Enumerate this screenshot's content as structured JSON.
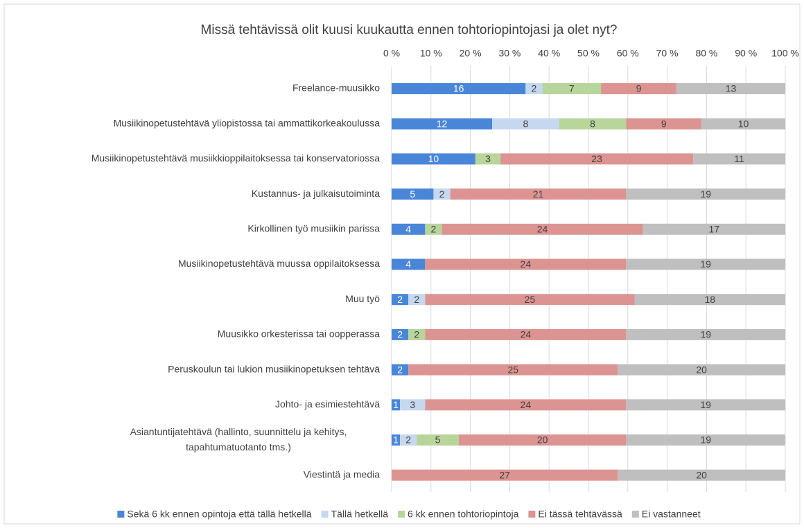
{
  "chart_data": {
    "type": "stacked-bar-horizontal",
    "title": "Missä tehtävissä olit kuusi kuukautta ennen tohtoriopintojasi ja olet nyt?",
    "categories": [
      "Freelance-muusikko",
      "Musiikinopetustehtävä yliopistossa tai ammattikorkeakoulussa",
      "Musiikinopetustehtävä musiikkioppilaitoksessa tai konservatoriossa",
      "Kustannus- ja julkaisutoiminta",
      "Kirkollinen työ musiikin parissa",
      "Musiikinopetustehtävä muussa oppilaitoksessa",
      "Muu työ",
      "Muusikko orkesterissa tai oopperassa",
      "Peruskoulun tai lukion musiikinopetuksen tehtävä",
      "Johto- ja esimiestehtävä",
      "Asiantuntijatehtävä (hallinto, suunnittelu ja kehitys, tapahtumatuotanto tms.)",
      "Viestintä ja media"
    ],
    "series": [
      {
        "name": "Sekä 6 kk ennen opintoja että tällä hetkellä",
        "color": "#4a86d8",
        "values": [
          34.04,
          25.53,
          21.28,
          10.64,
          8.51,
          8.51,
          4.26,
          4.26,
          4.26,
          2.13,
          2.13,
          null
        ],
        "value_labels": [
          "16",
          "12",
          "10",
          "5",
          "4",
          "4",
          "2",
          "2",
          "2",
          "1",
          "1",
          null
        ]
      },
      {
        "name": "Tällä hetkellä",
        "color": "#c5d8ef",
        "values": [
          4.26,
          17.02,
          null,
          4.26,
          null,
          null,
          4.26,
          null,
          null,
          6.38,
          4.26,
          null
        ],
        "value_labels": [
          "2",
          "8",
          null,
          "2",
          null,
          null,
          "2",
          null,
          null,
          "3",
          "2",
          null
        ]
      },
      {
        "name": "6 kk ennen tohtoriopintoja",
        "color": "#b8d59b",
        "values": [
          14.89,
          17.02,
          6.38,
          null,
          4.26,
          null,
          null,
          4.26,
          null,
          null,
          10.64,
          null
        ],
        "value_labels": [
          "7",
          "8",
          "3",
          null,
          "2",
          null,
          null,
          "2",
          null,
          null,
          "5",
          null
        ]
      },
      {
        "name": "Ei tässä tehtävässä",
        "color": "#dc9492",
        "values": [
          19.15,
          19.15,
          48.94,
          44.68,
          51.06,
          51.06,
          53.19,
          51.06,
          53.19,
          51.06,
          42.55,
          57.45
        ],
        "value_labels": [
          "9",
          "9",
          "23",
          "21",
          "24",
          "24",
          "25",
          "24",
          "25",
          "24",
          "20",
          "27"
        ]
      },
      {
        "name": "Ei vastanneet",
        "color": "#bfbfbf",
        "values": [
          27.66,
          21.28,
          23.4,
          40.43,
          36.17,
          40.43,
          38.3,
          40.43,
          42.55,
          40.43,
          40.43,
          42.55
        ],
        "value_labels": [
          "13",
          "10",
          "11",
          "19",
          "17",
          "19",
          "18",
          "19",
          "20",
          "19",
          "19",
          "20"
        ]
      }
    ],
    "xlim": [
      0,
      100
    ],
    "xticks": [
      {
        "value": 0,
        "label": "0 %"
      },
      {
        "value": 10,
        "label": "10 %"
      },
      {
        "value": 20,
        "label": "20 %"
      },
      {
        "value": 30,
        "label": "30 %"
      },
      {
        "value": 40,
        "label": "40 %"
      },
      {
        "value": 50,
        "label": "50 %"
      },
      {
        "value": 60,
        "label": "60 %"
      },
      {
        "value": 70,
        "label": "70 %"
      },
      {
        "value": 80,
        "label": "80 %"
      },
      {
        "value": 90,
        "label": "90 %"
      },
      {
        "value": 100,
        "label": "100 %"
      }
    ],
    "grid": true,
    "legend": "bottom"
  }
}
